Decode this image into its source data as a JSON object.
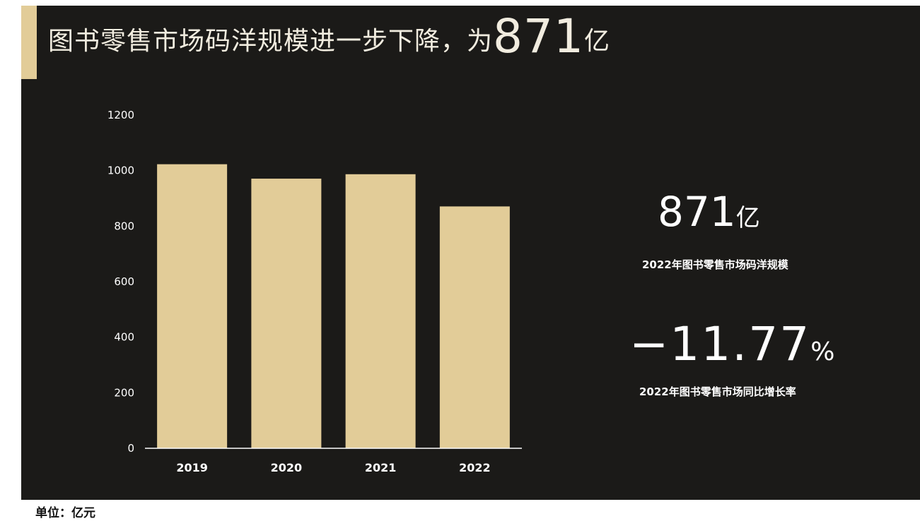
{
  "title": {
    "prefix": "图书零售市场码洋规模进一步下降，为",
    "highlight": "871",
    "unit": "亿"
  },
  "kpis": [
    {
      "value": "871",
      "unit": "亿",
      "label": "2022年图书零售市场码洋规模"
    },
    {
      "value": "−11.77",
      "unit": "%",
      "label": "2022年图书零售市场同比增长率"
    }
  ],
  "unit_note": "单位：亿元",
  "colors": {
    "background": "#1b1a18",
    "bar": "#e2cc98",
    "accent": "#e2cc98",
    "text": "#ffffff"
  },
  "chart_data": {
    "type": "bar",
    "categories": [
      "2019",
      "2020",
      "2021",
      "2022"
    ],
    "values": [
      1023,
      971,
      987,
      871
    ],
    "ylim": [
      0,
      1200
    ],
    "yticks": [
      "0",
      "200",
      "400",
      "600",
      "800",
      "1000",
      "1200"
    ],
    "grid": false,
    "legend": "none"
  }
}
